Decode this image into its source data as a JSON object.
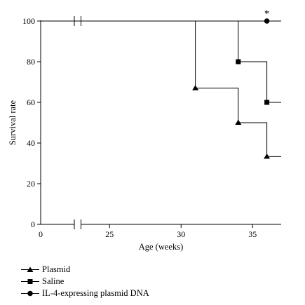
{
  "chart_data": {
    "type": "line",
    "subtype": "kaplan-meier step survival curve",
    "title": "",
    "xlabel": "Age (weeks)",
    "ylabel": "Survival rate",
    "x_ticks": [
      0,
      25,
      30,
      35
    ],
    "y_ticks": [
      0,
      20,
      40,
      60,
      80,
      100
    ],
    "xlim": [
      0,
      37
    ],
    "ylim": [
      0,
      100
    ],
    "x_axis_break": "between 0 and 23",
    "annotation": "*",
    "legend_position": "bottom-left",
    "series": [
      {
        "name": "Plasmid",
        "marker": "triangle",
        "color": "#000000",
        "steps": [
          [
            0,
            100
          ],
          [
            31,
            67
          ],
          [
            34,
            50
          ],
          [
            36,
            33.3
          ],
          [
            37,
            33.3
          ]
        ],
        "markers": [
          [
            31,
            67
          ],
          [
            34,
            50
          ],
          [
            36,
            33.3
          ]
        ]
      },
      {
        "name": "Saline",
        "marker": "square",
        "color": "#000000",
        "steps": [
          [
            0,
            100
          ],
          [
            34,
            80
          ],
          [
            36,
            60
          ],
          [
            37,
            60
          ]
        ],
        "markers": [
          [
            34,
            80
          ],
          [
            36,
            60
          ]
        ]
      },
      {
        "name": "IL-4-expressing plasmid DNA",
        "marker": "circle",
        "color": "#000000",
        "steps": [
          [
            0,
            100
          ],
          [
            37,
            100
          ]
        ],
        "markers": [
          [
            36,
            100
          ]
        ]
      }
    ]
  }
}
